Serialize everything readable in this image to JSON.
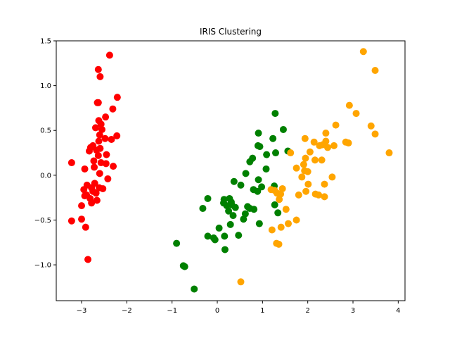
{
  "chart_data": {
    "type": "scatter",
    "title": "IRIS Clustering",
    "xlabel": "",
    "ylabel": "",
    "xlim": [
      -3.56,
      4.15
    ],
    "ylim": [
      -1.4,
      1.5
    ],
    "x_ticks": [
      -3,
      -2,
      -1,
      0,
      1,
      2,
      3,
      4
    ],
    "x_tick_labels": [
      "−3",
      "−2",
      "−1",
      "0",
      "1",
      "2",
      "3",
      "4"
    ],
    "y_ticks": [
      -1.0,
      -0.5,
      0.0,
      0.5,
      1.0,
      1.5
    ],
    "y_tick_labels": [
      "−1.0",
      "−0.5",
      "0.0",
      "0.5",
      "1.0",
      "1.5"
    ],
    "grid": false,
    "legend": "none",
    "series": [
      {
        "color": "#ff0000",
        "points": [
          [
            -2.38,
            1.34
          ],
          [
            -2.63,
            1.18
          ],
          [
            -2.59,
            1.1
          ],
          [
            -2.65,
            0.81
          ],
          [
            -2.63,
            0.81
          ],
          [
            -2.21,
            0.87
          ],
          [
            -2.31,
            0.74
          ],
          [
            -2.47,
            0.65
          ],
          [
            -2.62,
            0.61
          ],
          [
            -2.57,
            0.57
          ],
          [
            -2.69,
            0.53
          ],
          [
            -2.55,
            0.51
          ],
          [
            -2.6,
            0.45
          ],
          [
            -2.48,
            0.41
          ],
          [
            -2.22,
            0.44
          ],
          [
            -2.34,
            0.4
          ],
          [
            -2.62,
            0.38
          ],
          [
            -2.75,
            0.33
          ],
          [
            -2.8,
            0.31
          ],
          [
            -2.59,
            0.3
          ],
          [
            -2.67,
            0.28
          ],
          [
            -2.83,
            0.27
          ],
          [
            -2.45,
            0.23
          ],
          [
            -2.63,
            0.22
          ],
          [
            -2.73,
            0.16
          ],
          [
            -2.57,
            0.14
          ],
          [
            -2.46,
            0.13
          ],
          [
            -2.3,
            0.1
          ],
          [
            -2.72,
            0.09
          ],
          [
            -2.93,
            0.07
          ],
          [
            -3.22,
            0.14
          ],
          [
            -2.6,
            0.02
          ],
          [
            -2.42,
            -0.04
          ],
          [
            -2.71,
            -0.09
          ],
          [
            -2.88,
            -0.11
          ],
          [
            -2.78,
            -0.14
          ],
          [
            -2.61,
            -0.14
          ],
          [
            -2.53,
            -0.15
          ],
          [
            -2.95,
            -0.16
          ],
          [
            -2.75,
            -0.18
          ],
          [
            -2.68,
            -0.2
          ],
          [
            -2.89,
            -0.22
          ],
          [
            -2.93,
            -0.23
          ],
          [
            -2.81,
            -0.26
          ],
          [
            -2.66,
            -0.28
          ],
          [
            -2.78,
            -0.31
          ],
          [
            -3.0,
            -0.34
          ],
          [
            -3.22,
            -0.51
          ],
          [
            -3.0,
            -0.49
          ],
          [
            -2.91,
            -0.58
          ],
          [
            -2.86,
            -0.94
          ]
        ]
      },
      {
        "color": "#008000",
        "points": [
          [
            1.28,
            0.69
          ],
          [
            1.46,
            0.51
          ],
          [
            0.91,
            0.47
          ],
          [
            1.23,
            0.41
          ],
          [
            0.9,
            0.33
          ],
          [
            0.94,
            0.32
          ],
          [
            1.29,
            0.25
          ],
          [
            1.56,
            0.27
          ],
          [
            1.09,
            0.23
          ],
          [
            0.78,
            0.19
          ],
          [
            0.72,
            0.15
          ],
          [
            1.08,
            0.07
          ],
          [
            0.63,
            0.02
          ],
          [
            0.91,
            -0.05
          ],
          [
            0.37,
            -0.07
          ],
          [
            0.52,
            -0.11
          ],
          [
            1.26,
            -0.12
          ],
          [
            0.98,
            -0.13
          ],
          [
            0.8,
            -0.16
          ],
          [
            0.89,
            -0.18
          ],
          [
            0.15,
            -0.27
          ],
          [
            0.27,
            -0.26
          ],
          [
            -0.21,
            -0.26
          ],
          [
            0.31,
            -0.3
          ],
          [
            0.14,
            -0.31
          ],
          [
            0.32,
            -0.33
          ],
          [
            0.21,
            -0.34
          ],
          [
            0.67,
            -0.35
          ],
          [
            0.4,
            -0.36
          ],
          [
            0.72,
            -0.37
          ],
          [
            0.81,
            -0.38
          ],
          [
            -0.32,
            -0.37
          ],
          [
            0.25,
            -0.4
          ],
          [
            1.27,
            -0.33
          ],
          [
            1.34,
            -0.42
          ],
          [
            0.62,
            -0.43
          ],
          [
            0.35,
            -0.45
          ],
          [
            0.58,
            -0.49
          ],
          [
            0.29,
            -0.55
          ],
          [
            0.93,
            -0.54
          ],
          [
            0.04,
            -0.59
          ],
          [
            0.47,
            -0.67
          ],
          [
            -0.21,
            -0.68
          ],
          [
            -0.05,
            -0.72
          ],
          [
            -0.08,
            -0.7
          ],
          [
            0.16,
            -0.68
          ],
          [
            0.17,
            -0.83
          ],
          [
            -0.9,
            -0.76
          ],
          [
            -0.75,
            -1.01
          ],
          [
            -0.72,
            -1.02
          ],
          [
            -0.51,
            -1.27
          ]
        ]
      },
      {
        "color": "#ffa500",
        "points": [
          [
            3.23,
            1.38
          ],
          [
            3.49,
            1.17
          ],
          [
            2.92,
            0.78
          ],
          [
            3.07,
            0.69
          ],
          [
            2.62,
            0.56
          ],
          [
            3.4,
            0.55
          ],
          [
            3.49,
            0.46
          ],
          [
            2.4,
            0.47
          ],
          [
            1.94,
            0.41
          ],
          [
            2.14,
            0.37
          ],
          [
            2.4,
            0.38
          ],
          [
            2.26,
            0.33
          ],
          [
            2.33,
            0.34
          ],
          [
            2.58,
            0.33
          ],
          [
            2.84,
            0.37
          ],
          [
            2.9,
            0.36
          ],
          [
            2.44,
            0.31
          ],
          [
            1.62,
            0.25
          ],
          [
            2.05,
            0.26
          ],
          [
            2.31,
            0.17
          ],
          [
            2.16,
            0.17
          ],
          [
            1.95,
            0.19
          ],
          [
            3.8,
            0.25
          ],
          [
            1.91,
            0.12
          ],
          [
            1.75,
            0.08
          ],
          [
            1.93,
            0.05
          ],
          [
            2.0,
            0.04
          ],
          [
            1.87,
            -0.02
          ],
          [
            2.54,
            -0.02
          ],
          [
            2.37,
            -0.1
          ],
          [
            2.01,
            -0.1
          ],
          [
            1.19,
            -0.16
          ],
          [
            1.27,
            -0.17
          ],
          [
            1.44,
            -0.15
          ],
          [
            1.32,
            -0.2
          ],
          [
            1.4,
            -0.21
          ],
          [
            1.8,
            -0.22
          ],
          [
            1.96,
            -0.18
          ],
          [
            2.17,
            -0.21
          ],
          [
            2.24,
            -0.22
          ],
          [
            2.37,
            -0.24
          ],
          [
            1.37,
            -0.27
          ],
          [
            1.52,
            -0.38
          ],
          [
            1.75,
            -0.5
          ],
          [
            1.57,
            -0.54
          ],
          [
            1.41,
            -0.58
          ],
          [
            1.21,
            -0.61
          ],
          [
            1.31,
            -0.76
          ],
          [
            1.36,
            -0.77
          ],
          [
            0.52,
            -1.19
          ]
        ]
      }
    ]
  }
}
